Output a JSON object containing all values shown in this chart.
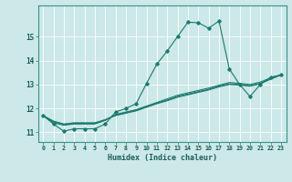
{
  "xlabel": "Humidex (Indice chaleur)",
  "background_color": "#cce8e8",
  "grid_color": "#ffffff",
  "line_color": "#1a7a6e",
  "x_data": [
    0,
    1,
    2,
    3,
    4,
    5,
    6,
    7,
    8,
    9,
    10,
    11,
    12,
    13,
    14,
    15,
    16,
    17,
    18,
    19,
    20,
    21,
    22,
    23
  ],
  "line1": [
    11.7,
    11.35,
    11.05,
    11.15,
    11.15,
    11.15,
    11.35,
    11.85,
    12.0,
    12.2,
    13.05,
    13.85,
    14.4,
    15.0,
    15.6,
    15.58,
    15.35,
    15.65,
    13.65,
    13.0,
    12.5,
    13.0,
    13.3,
    13.4
  ],
  "line2": [
    11.7,
    11.4,
    11.3,
    11.35,
    11.35,
    11.35,
    11.5,
    11.75,
    11.85,
    11.95,
    12.1,
    12.25,
    12.4,
    12.55,
    12.65,
    12.75,
    12.85,
    12.97,
    13.08,
    13.05,
    13.0,
    13.1,
    13.28,
    13.4
  ],
  "line3": [
    11.7,
    11.45,
    11.32,
    11.38,
    11.38,
    11.38,
    11.52,
    11.72,
    11.82,
    11.92,
    12.07,
    12.22,
    12.35,
    12.5,
    12.6,
    12.7,
    12.8,
    12.93,
    13.03,
    13.0,
    12.95,
    13.05,
    13.23,
    13.4
  ],
  "line4": [
    11.7,
    11.47,
    11.35,
    11.4,
    11.4,
    11.4,
    11.53,
    11.7,
    11.8,
    11.9,
    12.05,
    12.2,
    12.32,
    12.47,
    12.57,
    12.67,
    12.77,
    12.9,
    13.0,
    12.98,
    12.93,
    13.03,
    13.23,
    13.4
  ],
  "ylim": [
    10.6,
    16.3
  ],
  "xlim": [
    -0.5,
    23.5
  ],
  "yticks": [
    11,
    12,
    13,
    14,
    15
  ],
  "xticks": [
    0,
    1,
    2,
    3,
    4,
    5,
    6,
    7,
    8,
    9,
    10,
    11,
    12,
    13,
    14,
    15,
    16,
    17,
    18,
    19,
    20,
    21,
    22,
    23
  ]
}
